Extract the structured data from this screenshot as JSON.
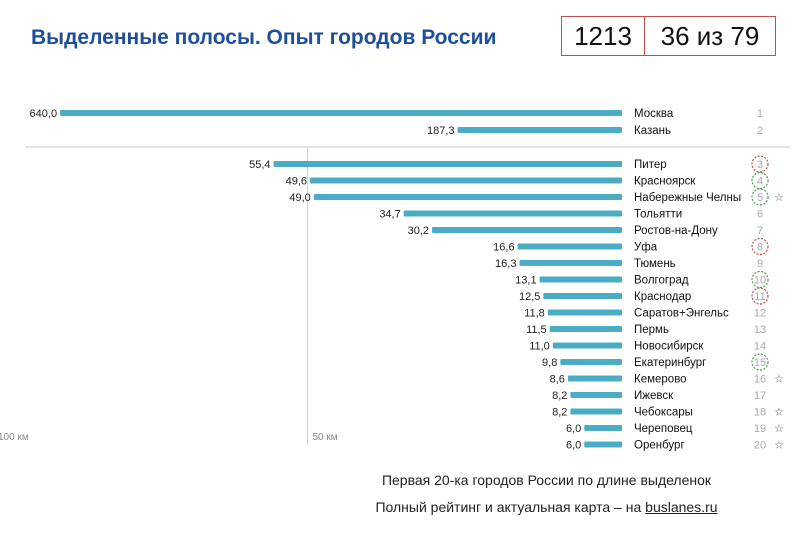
{
  "title": "Выделенные полосы. Опыт городов России",
  "stats": {
    "total": "1213",
    "rank": "36 из 79"
  },
  "chart_data": {
    "type": "bar",
    "orientation": "horizontal",
    "bar_color": "#4bacc6",
    "broken_axis": true,
    "categories": [
      "Москва",
      "Казань",
      "Питер",
      "Красноярск",
      "Набережные Челны",
      "Тольятти",
      "Ростов-на-Дону",
      "Уфа",
      "Тюмень",
      "Волгоград",
      "Краснодар",
      "Саратов+Энгельс",
      "Пермь",
      "Новосибирск",
      "Екатеринбург",
      "Кемерово",
      "Ижевск",
      "Чебоксары",
      "Череповец",
      "Оренбург"
    ],
    "values": [
      640.0,
      187.3,
      55.4,
      49.6,
      49.0,
      34.7,
      30.2,
      16.6,
      16.3,
      13.1,
      12.5,
      11.8,
      11.5,
      11.0,
      9.8,
      8.6,
      8.2,
      8.2,
      6.0,
      6.0
    ],
    "value_labels": [
      "640,0",
      "187,3",
      "55,4",
      "49,6",
      "49,0",
      "34,7",
      "30,2",
      "16,6",
      "16,3",
      "13,1",
      "12,5",
      "11,8",
      "11,5",
      "11,0",
      "9,8",
      "8,6",
      "8,2",
      "8,2",
      "6,0",
      "6,0"
    ],
    "ranks": [
      "1",
      "2",
      "3",
      "4",
      "5",
      "6",
      "7",
      "8",
      "9",
      "10",
      "11",
      "12",
      "13",
      "14",
      "15",
      "16",
      "17",
      "18",
      "19",
      "20"
    ],
    "rank_circles": {
      "3": "red",
      "4": "green",
      "5": "green",
      "8": "red",
      "10": "green",
      "11": "red",
      "15": "green"
    },
    "stars": [
      "Набережные Челны",
      "Кемерово",
      "Чебоксары",
      "Череповец",
      "Оренбург"
    ],
    "star_symbol": "☆",
    "reference_lines": [
      {
        "label": "100 км",
        "value": 100
      },
      {
        "label": "50 км",
        "value": 50
      }
    ]
  },
  "colors": {
    "title": "#1f4e9a",
    "bar": "#4bacc6",
    "red": "#c0504d",
    "green": "#4aa04a"
  },
  "caption": {
    "line1": "Первая 20-ка городов России по длине выделенок",
    "line2_prefix": "Полный рейтинг и актуальная карта – на ",
    "line2_link": "buslanes.ru"
  }
}
